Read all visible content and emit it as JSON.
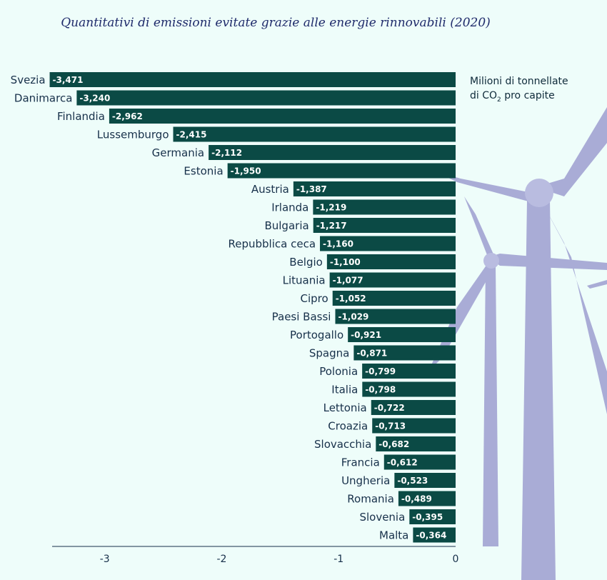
{
  "chart_data": {
    "type": "bar",
    "orientation": "horizontal",
    "title": "Quantitativi di emissioni evitate grazie alle energie rinnovabili (2020)",
    "unit_label_line1": "Milioni di tonnellate",
    "unit_label_line2_prefix": "di CO",
    "unit_label_line2_sub": "2",
    "unit_label_line2_suffix": " pro capite",
    "categories": [
      "Svezia",
      "Danimarca",
      "Finlandia",
      "Lussemburgo",
      "Germania",
      "Estonia",
      "Austria",
      "Irlanda",
      "Bulgaria",
      "Repubblica ceca",
      "Belgio",
      "Lituania",
      "Cipro",
      "Paesi Bassi",
      "Portogallo",
      "Spagna",
      "Polonia",
      "Italia",
      "Lettonia",
      "Croazia",
      "Slovacchia",
      "Francia",
      "Ungheria",
      "Romania",
      "Slovenia",
      "Malta"
    ],
    "values": [
      -3.471,
      -3.24,
      -2.962,
      -2.415,
      -2.112,
      -1.95,
      -1.387,
      -1.219,
      -1.217,
      -1.16,
      -1.1,
      -1.077,
      -1.052,
      -1.029,
      -0.921,
      -0.871,
      -0.799,
      -0.798,
      -0.722,
      -0.713,
      -0.682,
      -0.612,
      -0.523,
      -0.489,
      -0.395,
      -0.364
    ],
    "value_labels": [
      "-3,471",
      "-3,240",
      "-2,962",
      "-2,415",
      "-2,112",
      "-1,950",
      "-1,387",
      "-1,219",
      "-1,217",
      "-1,160",
      "-1,100",
      "-1,077",
      "-1,052",
      "-1,029",
      "-0,921",
      "-0,871",
      "-0,799",
      "-0,798",
      "-0,722",
      "-0,713",
      "-0,682",
      "-0,612",
      "-0,523",
      "-0,489",
      "-0,395",
      "-0,364"
    ],
    "xlim": [
      -3.45,
      0
    ],
    "xticks": [
      -3,
      -2,
      -1,
      0
    ],
    "xtick_labels": [
      "-3",
      "-2",
      "-1",
      "0"
    ],
    "bar_color": "#0b4a45",
    "grid": false
  }
}
